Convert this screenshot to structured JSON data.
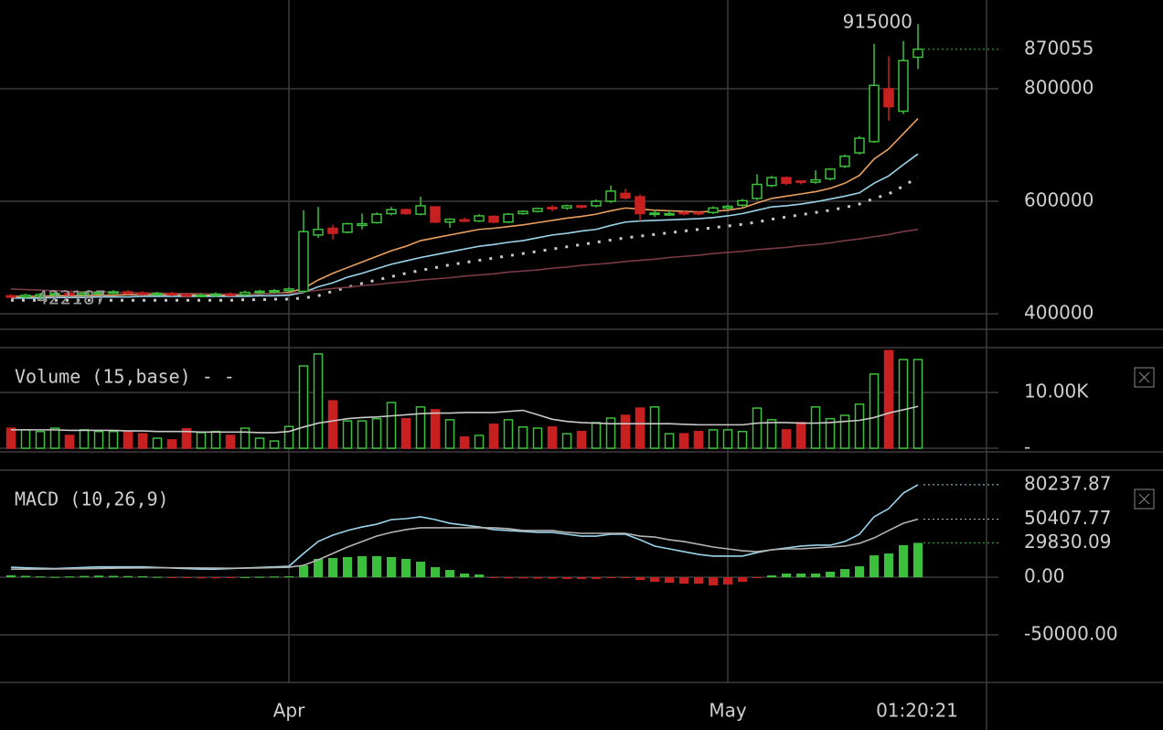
{
  "clock": "01:20:21",
  "chart_data": [
    {
      "type": "candlestick",
      "categories": [
        null,
        null,
        null,
        null,
        null,
        null,
        null,
        null,
        null,
        null,
        null,
        null,
        null,
        null,
        null,
        null,
        null,
        null,
        null,
        "Apr",
        null,
        null,
        null,
        null,
        null,
        null,
        null,
        null,
        null,
        null,
        null,
        null,
        null,
        null,
        null,
        null,
        null,
        null,
        null,
        null,
        null,
        null,
        null,
        null,
        null,
        null,
        null,
        null,
        null,
        "May",
        null,
        null,
        null,
        null,
        null,
        null,
        null,
        null,
        null,
        null,
        null,
        null,
        null
      ],
      "open": [
        432000,
        430000,
        431000,
        434000,
        436000,
        434000,
        437000,
        438000,
        439000,
        437000,
        435000,
        436000,
        434000,
        432000,
        433000,
        435000,
        434000,
        438000,
        440000,
        441000,
        440000,
        540000,
        552000,
        545000,
        557000,
        562000,
        578000,
        585000,
        577000,
        590000,
        563000,
        567000,
        565000,
        573000,
        563000,
        578000,
        582000,
        589000,
        588000,
        592000,
        592000,
        600000,
        614000,
        608000,
        578000,
        578000,
        580000,
        580000,
        580000,
        588000,
        593000,
        605000,
        628000,
        642000,
        636000,
        634000,
        640000,
        662000,
        686000,
        706000,
        800000,
        760000,
        856000
      ],
      "high": [
        435000,
        436000,
        437000,
        439000,
        439000,
        440000,
        441000,
        442000,
        442000,
        440000,
        439000,
        439000,
        437000,
        436000,
        438000,
        438000,
        441000,
        443000,
        444000,
        447000,
        584000,
        590000,
        558000,
        562000,
        578000,
        580000,
        590000,
        587000,
        608000,
        591000,
        570000,
        571000,
        577000,
        575000,
        579000,
        584000,
        589000,
        593000,
        594000,
        593000,
        603000,
        628000,
        622000,
        612000,
        585000,
        584000,
        583000,
        582000,
        591000,
        594000,
        604000,
        648000,
        645000,
        644000,
        637000,
        655000,
        659000,
        683000,
        716000,
        880000,
        858000,
        885000,
        915000
      ],
      "low": [
        427000,
        427000,
        422187,
        431000,
        431000,
        431000,
        434000,
        435000,
        434000,
        432000,
        432000,
        431000,
        429000,
        429000,
        430000,
        431000,
        431000,
        435000,
        437000,
        438000,
        437000,
        535000,
        532000,
        543000,
        550000,
        560000,
        575000,
        576000,
        575000,
        561000,
        553000,
        563000,
        563000,
        561000,
        561000,
        576000,
        580000,
        582000,
        585000,
        587000,
        589000,
        597000,
        603000,
        565000,
        572000,
        574000,
        575000,
        575000,
        577000,
        585000,
        590000,
        602000,
        625000,
        629000,
        630000,
        631000,
        637000,
        659000,
        683000,
        704000,
        743000,
        755000,
        835000
      ],
      "close": [
        430000,
        433000,
        434000,
        436000,
        434000,
        437000,
        438000,
        439000,
        437000,
        435000,
        436000,
        434000,
        432000,
        433000,
        435000,
        434000,
        438000,
        440000,
        441000,
        444000,
        546000,
        550000,
        543000,
        560000,
        560000,
        577000,
        585000,
        578000,
        592000,
        563000,
        568000,
        566000,
        574000,
        563000,
        577000,
        582000,
        587000,
        588000,
        592000,
        590000,
        600000,
        618000,
        606000,
        578000,
        579000,
        578000,
        578000,
        579000,
        588000,
        591000,
        601000,
        630000,
        642000,
        632000,
        634000,
        638000,
        657000,
        680000,
        712000,
        806000,
        768000,
        850000,
        870055
      ],
      "up_color": "#3cbf3c",
      "down_color": "#c62020",
      "lines": [
        {
          "color": "#e8a060",
          "style": "solid",
          "values": [
            431000,
            431000,
            431000,
            432000,
            432000,
            432000,
            433000,
            433000,
            434000,
            434000,
            434000,
            434000,
            434000,
            433000,
            433000,
            433000,
            434000,
            435000,
            436000,
            438000,
            445000,
            460000,
            472000,
            482000,
            492000,
            502000,
            512000,
            520000,
            530000,
            535000,
            540000,
            545000,
            550000,
            552000,
            555000,
            558000,
            562000,
            566000,
            570000,
            573000,
            577000,
            583000,
            588000,
            586000,
            584000,
            583000,
            582000,
            581000,
            582000,
            584000,
            588000,
            597000,
            605000,
            609000,
            613000,
            617000,
            623000,
            632000,
            646000,
            675000,
            693000,
            720000,
            747000
          ]
        },
        {
          "color": "#9ad4ea",
          "style": "solid",
          "values": [
            428000,
            428000,
            428000,
            429000,
            429000,
            429000,
            430000,
            430000,
            430000,
            431000,
            431000,
            431000,
            431000,
            431000,
            431000,
            431000,
            431000,
            432000,
            432000,
            433000,
            438000,
            448000,
            455000,
            465000,
            472000,
            480000,
            488000,
            494000,
            500000,
            505000,
            510000,
            515000,
            520000,
            523000,
            527000,
            530000,
            535000,
            540000,
            543000,
            547000,
            550000,
            557000,
            563000,
            565000,
            566000,
            567000,
            568000,
            569000,
            571000,
            574000,
            578000,
            584000,
            590000,
            592000,
            595000,
            599000,
            604000,
            609000,
            615000,
            632000,
            645000,
            665000,
            684000
          ]
        },
        {
          "color": "#c8c8c8",
          "style": "dotted",
          "values": [
            424000,
            424000,
            424000,
            424000,
            424000,
            424000,
            424000,
            424000,
            424000,
            424000,
            424000,
            424000,
            424000,
            424000,
            424000,
            424000,
            425000,
            425000,
            426000,
            426000,
            428000,
            432000,
            440000,
            447000,
            454000,
            460000,
            466000,
            472000,
            477000,
            482000,
            487000,
            491000,
            495000,
            499000,
            503000,
            507000,
            511000,
            515000,
            519000,
            523000,
            527000,
            531000,
            535000,
            538000,
            541000,
            544000,
            547000,
            550000,
            553000,
            556000,
            559000,
            563000,
            568000,
            572000,
            576000,
            580000,
            584000,
            589000,
            595000,
            605000,
            613000,
            627000,
            643000
          ]
        },
        {
          "color": "#7a3a44",
          "style": "solid",
          "values": [
            444000,
            443000,
            442000,
            441000,
            440000,
            439000,
            439000,
            438000,
            438000,
            437000,
            437000,
            436000,
            436000,
            436000,
            435000,
            435000,
            435000,
            435000,
            436000,
            436000,
            439000,
            442000,
            445000,
            447000,
            450000,
            452000,
            455000,
            457000,
            460000,
            462000,
            464000,
            467000,
            469000,
            471000,
            474000,
            476000,
            478000,
            481000,
            483000,
            486000,
            488000,
            490000,
            493000,
            495000,
            497000,
            500000,
            502000,
            504000,
            507000,
            509000,
            511000,
            514000,
            516000,
            518000,
            521000,
            523000,
            526000,
            530000,
            533000,
            537000,
            541000,
            546000,
            550000
          ]
        }
      ],
      "ylim": [
        375600,
        957700
      ],
      "yticks": [
        400000,
        600000,
        800000
      ],
      "grid": true
    },
    {
      "type": "bar",
      "title": "Volume (15,base) - -",
      "values": [
        3600,
        3300,
        3000,
        3600,
        2300,
        3300,
        3000,
        3000,
        3000,
        2600,
        1800,
        1500,
        3500,
        2800,
        3000,
        2300,
        3600,
        1800,
        1300,
        3900,
        14750,
        16900,
        8500,
        4900,
        4900,
        5300,
        8200,
        5300,
        7400,
        6900,
        5100,
        2000,
        2300,
        4300,
        5100,
        3800,
        3600,
        3800,
        2600,
        3000,
        4600,
        5400,
        5900,
        7200,
        7400,
        2600,
        2600,
        3000,
        3300,
        3300,
        3000,
        7200,
        5100,
        3300,
        4600,
        7400,
        5300,
        5900,
        7900,
        13300,
        17500,
        15900,
        15900
      ],
      "line": {
        "color": "#c8c8c8",
        "values": [
          3300,
          3300,
          3300,
          3300,
          3200,
          3200,
          3200,
          3200,
          3100,
          3100,
          3000,
          3000,
          3000,
          2900,
          2900,
          2900,
          2900,
          2800,
          2800,
          3000,
          3800,
          4500,
          4900,
          5300,
          5500,
          5600,
          5800,
          6000,
          6200,
          6300,
          6300,
          6400,
          6400,
          6400,
          6600,
          6800,
          6000,
          5200,
          4800,
          4600,
          4500,
          4400,
          4400,
          4400,
          4400,
          4400,
          4300,
          4200,
          4200,
          4200,
          4200,
          4500,
          4600,
          4600,
          4500,
          4500,
          4600,
          4800,
          5000,
          5500,
          6300,
          6900,
          7500
        ]
      },
      "ylim": [
        0,
        17870
      ],
      "yticks": [
        {
          "value": 0,
          "label": "-"
        },
        {
          "value": 10000,
          "label": "10.00K"
        }
      ],
      "grid": true
    },
    {
      "type": "macd",
      "title": "MACD (10,26,9)",
      "series": [
        {
          "color": "#9ad4ea",
          "values": [
            8700,
            8200,
            7800,
            7500,
            8000,
            8500,
            9000,
            9000,
            9000,
            9000,
            8500,
            8000,
            7500,
            7000,
            7000,
            7500,
            8000,
            8500,
            9000,
            9500,
            20600,
            31000,
            36500,
            40500,
            43600,
            46000,
            50000,
            50800,
            52400,
            50000,
            46800,
            45200,
            43600,
            41300,
            40500,
            39700,
            38900,
            38900,
            37300,
            35700,
            35700,
            37300,
            37300,
            32500,
            27000,
            24600,
            22200,
            19800,
            18300,
            18300,
            18300,
            21400,
            23800,
            25400,
            27000,
            27800,
            27800,
            31000,
            37300,
            52400,
            59500,
            73000,
            80237.87
          ]
        },
        {
          "color": "#b4b4b4",
          "values": [
            7000,
            7000,
            7100,
            7200,
            7300,
            7400,
            7600,
            7800,
            8000,
            8100,
            8200,
            8200,
            8100,
            8000,
            7900,
            7800,
            7900,
            8100,
            8400,
            8700,
            10300,
            15100,
            20600,
            26200,
            31000,
            35700,
            38900,
            41300,
            42900,
            42900,
            42900,
            42900,
            42900,
            42900,
            42100,
            40500,
            40500,
            40500,
            38900,
            38100,
            38100,
            38100,
            38100,
            35700,
            34900,
            32500,
            31000,
            28600,
            26200,
            24600,
            23000,
            22200,
            23800,
            24600,
            24600,
            25400,
            26200,
            27000,
            29400,
            34100,
            40500,
            46800,
            50407.77
          ]
        }
      ],
      "histogram": {
        "up_color": "#3cbf3c",
        "down_color": "#c62020",
        "values": [
          1700,
          1200,
          700,
          300,
          700,
          1100,
          1400,
          1200,
          1000,
          900,
          300,
          -200,
          -600,
          -1000,
          -900,
          -300,
          100,
          400,
          600,
          800,
          10300,
          15900,
          16700,
          17500,
          18300,
          18300,
          17500,
          15900,
          13500,
          8700,
          6300,
          3200,
          2400,
          -800,
          -1000,
          -1000,
          -1200,
          -1200,
          -1500,
          -1500,
          -1500,
          -800,
          -800,
          -2400,
          -4000,
          -4800,
          -5600,
          -5600,
          -7100,
          -6300,
          -4000,
          -800,
          1600,
          3200,
          3200,
          3200,
          4800,
          7100,
          9500,
          19000,
          20600,
          27800,
          29830.09
        ]
      },
      "ylim": [
        -90476,
        92063
      ],
      "yticks": [
        {
          "value": -50000,
          "label": "-50000.00"
        },
        {
          "value": 0,
          "label": "0.00"
        }
      ],
      "grid": true
    }
  ]
}
